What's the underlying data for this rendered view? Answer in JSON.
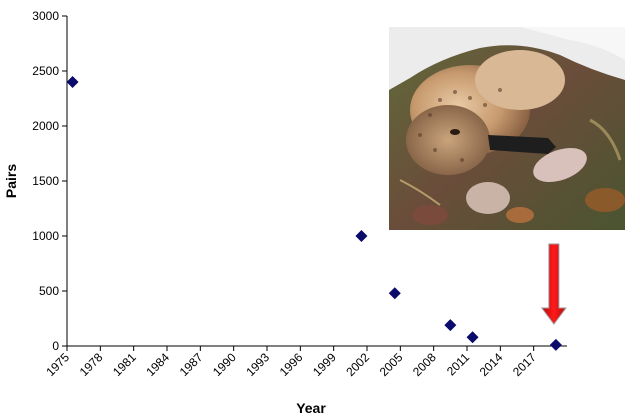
{
  "chart_data": {
    "type": "scatter",
    "xlabel": "Year",
    "ylabel": "Pairs",
    "xlim": [
      1975,
      2020
    ],
    "ylim": [
      0,
      3000
    ],
    "xticks": [
      1975,
      1978,
      1981,
      1984,
      1987,
      1990,
      1993,
      1996,
      1999,
      2002,
      2005,
      2008,
      2011,
      2014,
      2017
    ],
    "yticks": [
      0,
      500,
      1000,
      1500,
      2000,
      2500,
      3000
    ],
    "grid": false,
    "legend": "none",
    "marker": "diamond",
    "marker_color": "#0b0b6b",
    "points": [
      {
        "x": 1975.5,
        "y": 2400
      },
      {
        "x": 2001.5,
        "y": 1000
      },
      {
        "x": 2004.5,
        "y": 480
      },
      {
        "x": 2009.5,
        "y": 190
      },
      {
        "x": 2011.5,
        "y": 80
      },
      {
        "x": 2019,
        "y": 10
      }
    ],
    "annotations": [
      {
        "type": "arrow",
        "direction": "down",
        "color": "#e3100f",
        "points_to_x": 2019
      }
    ]
  },
  "inset": {
    "icon": "dead-bird-photo-icon"
  }
}
